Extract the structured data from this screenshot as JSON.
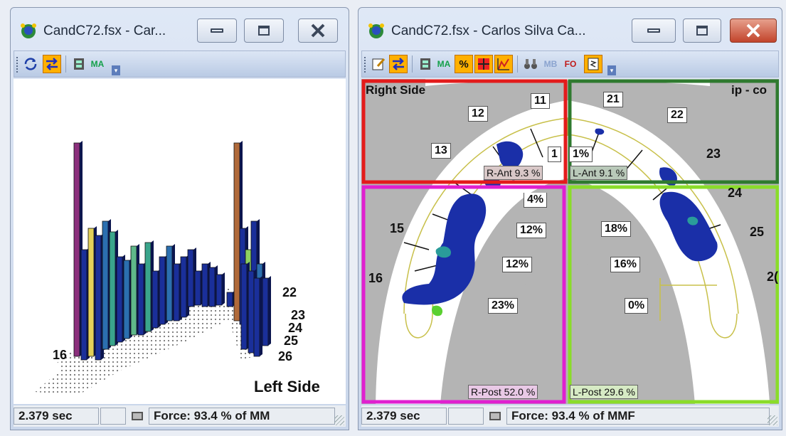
{
  "colors": {
    "right_anterior": "#e31b1b",
    "left_anterior": "#2f7a2f",
    "right_posterior": "#e020d0",
    "left_posterior": "#8adc2a",
    "gum_gray": "#b4b4b4",
    "contact_blue": "#1a2fa8"
  },
  "left_window": {
    "title": "CandC72.fsx - Car...",
    "toolbar": [
      "refresh-icon",
      "swap-icon",
      "film-icon",
      "MA"
    ],
    "labels": {
      "t16": "16",
      "t22": "22",
      "t23": "23",
      "t24": "24",
      "t25": "25",
      "t26": "26",
      "left_side": "Left Side"
    },
    "status": {
      "time": "2.379 sec",
      "force": "Force: 93.4 % of MM"
    }
  },
  "right_window": {
    "title": "CandC72.fsx - Carlos Silva Ca...",
    "toolbar": [
      "edit-icon",
      "swap-icon",
      "film-icon",
      "MA",
      "%",
      "grid-icon",
      "chart-icon",
      "binoculars-icon",
      "MB",
      "FO",
      "script-icon"
    ],
    "right_side": "Right Side",
    "right_header_partial": "ip - co",
    "teeth": {
      "t11": "11",
      "t12": "12",
      "t13": "13",
      "t14": "1",
      "t15": "15",
      "t16": "16",
      "t21": "21",
      "t22": "22",
      "t23": "23",
      "t24": "24",
      "t25": "25",
      "t26": "2("
    },
    "percent_boxes": {
      "r_ant_partial": "1%",
      "r_top": "4%",
      "r_1": "12%",
      "r_2": "12%",
      "r_3": "23%",
      "l_1": "18%",
      "l_2": "16%",
      "l_3": "0%"
    },
    "quadrants": {
      "r_ant": "R-Ant 9.3 %",
      "l_ant": "L-Ant 9.1 %",
      "r_post": "R-Post 52.0 %",
      "l_post": "L-Post 29.6 %"
    },
    "status": {
      "time": "2.379 sec",
      "force": "Force: 93.4 % of MMF"
    }
  }
}
